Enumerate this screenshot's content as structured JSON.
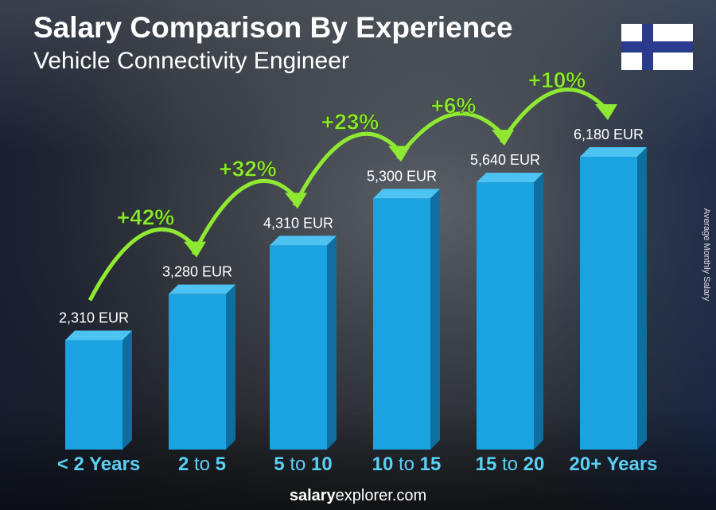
{
  "title": "Salary Comparison By Experience",
  "subtitle": "Vehicle Connectivity Engineer",
  "ylabel": "Average Monthly Salary",
  "footer": {
    "bold": "salary",
    "rest": "explorer.com"
  },
  "flag": "finland-flag",
  "colors": {
    "bar": "#1aa3e0",
    "bar_side": "#0e6f9e",
    "bar_top": "#4cc3f0",
    "pct": "#8fe832",
    "xlabel": "#5ad0f5"
  },
  "chart_data": {
    "type": "bar",
    "title": "Salary Comparison By Experience",
    "subtitle": "Vehicle Connectivity Engineer",
    "ylabel": "Average Monthly Salary",
    "unit": "EUR",
    "categories": [
      "< 2 Years",
      "2 to 5",
      "5 to 10",
      "10 to 15",
      "15 to 20",
      "20+ Years"
    ],
    "category_parts": [
      [
        "< 2 Years",
        "",
        ""
      ],
      [
        "2",
        " to ",
        "5"
      ],
      [
        "5",
        " to ",
        "10"
      ],
      [
        "10",
        " to ",
        "15"
      ],
      [
        "15",
        " to ",
        "20"
      ],
      [
        "20+ Years",
        "",
        ""
      ]
    ],
    "values": [
      2310,
      3280,
      4310,
      5300,
      5640,
      6180
    ],
    "value_labels": [
      "2,310 EUR",
      "3,280 EUR",
      "4,310 EUR",
      "5,300 EUR",
      "5,640 EUR",
      "6,180 EUR"
    ],
    "increases": [
      "+42%",
      "+32%",
      "+23%",
      "+6%",
      "+10%"
    ],
    "ylim": [
      0,
      6180
    ],
    "grid": false
  }
}
